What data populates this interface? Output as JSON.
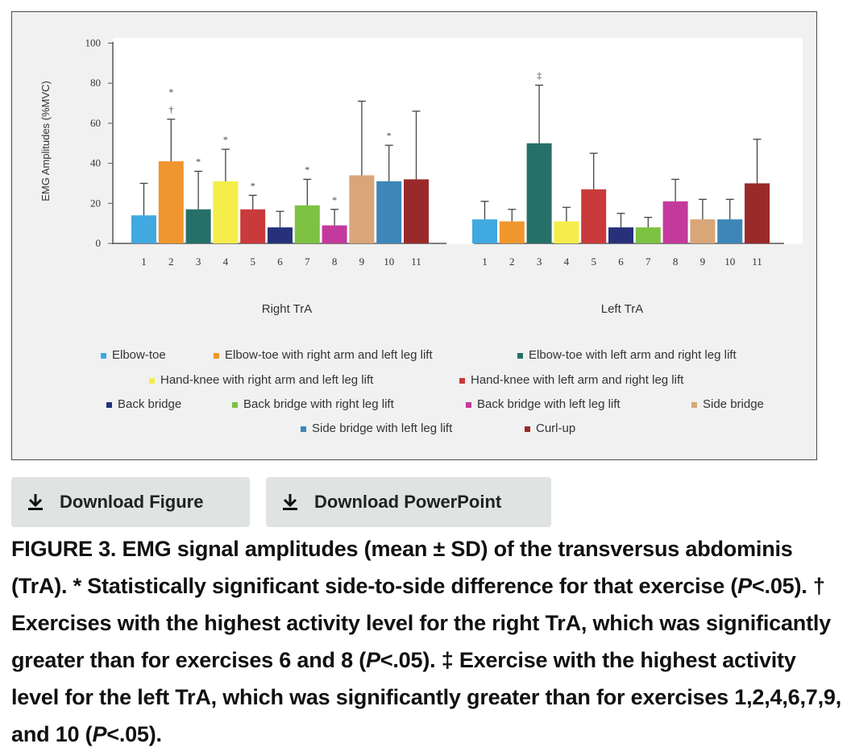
{
  "chart_data": {
    "type": "bar",
    "ylabel": "EMG Amplitudes (%MVC)",
    "ylim": [
      0,
      100
    ],
    "yticks": [
      "0",
      "20",
      "40",
      "60",
      "80",
      "100"
    ],
    "groups": [
      {
        "name": "Right TrA",
        "categories": [
          "1",
          "2",
          "3",
          "4",
          "5",
          "6",
          "7",
          "8",
          "9",
          "10",
          "11"
        ],
        "values": [
          14,
          41,
          17,
          31,
          17,
          8,
          19,
          9,
          34,
          31,
          32
        ],
        "sd_upper": [
          30,
          62,
          36,
          47,
          24,
          16,
          32,
          17,
          71,
          49,
          66
        ],
        "marks": [
          "",
          "*\n†",
          "*",
          "*",
          "*",
          "",
          "*",
          "*",
          "",
          "*",
          ""
        ]
      },
      {
        "name": "Left TrA",
        "categories": [
          "1",
          "2",
          "3",
          "4",
          "5",
          "6",
          "7",
          "8",
          "9",
          "10",
          "11"
        ],
        "values": [
          12,
          11,
          50,
          11,
          27,
          8,
          8,
          21,
          12,
          12,
          30
        ],
        "sd_upper": [
          21,
          17,
          79,
          18,
          45,
          15,
          13,
          32,
          22,
          22,
          52
        ],
        "marks": [
          "",
          "",
          "‡",
          "",
          "",
          "",
          "",
          "",
          "",
          "",
          ""
        ]
      }
    ],
    "series": [
      {
        "name": "Elbow-toe",
        "color": "#3fa9e0"
      },
      {
        "name": "Elbow-toe with right arm and left leg lift",
        "color": "#f0962e"
      },
      {
        "name": "Elbow-toe with left arm and right leg lift",
        "color": "#267069"
      },
      {
        "name": "Hand-knee with right arm and left leg lift",
        "color": "#f5ed4a"
      },
      {
        "name": "Hand-knee with left arm and right leg lift",
        "color": "#c93a3a"
      },
      {
        "name": "Back bridge",
        "color": "#26317a"
      },
      {
        "name": "Back bridge with right leg lift",
        "color": "#7dc242"
      },
      {
        "name": "Back bridge with left leg lift",
        "color": "#c4399c"
      },
      {
        "name": "Side bridge",
        "color": "#d9a678"
      },
      {
        "name": "Side bridge with left leg lift",
        "color": "#3d86b8"
      },
      {
        "name": "Curl-up",
        "color": "#9a2a2a"
      }
    ],
    "legend_placement": "bottom",
    "grid": false
  },
  "buttons": {
    "download_figure": "Download Figure",
    "download_powerpoint": "Download PowerPoint"
  },
  "icons": {
    "download": "download-icon"
  },
  "caption": {
    "p1": "FIGURE 3. EMG signal amplitudes (mean ± SD) of the transversus abdominis (TrA). * Statistically significant side-to-side difference for that exercise (",
    "p_italic_1": "P",
    "p2": "<.05).  † Exercises with the highest activity level for the right TrA, which was significantly greater than for exercises 6 and 8 (",
    "p_italic_2": "P",
    "p3": "<.05).  ‡ Exercise with the highest activity level for the left TrA, which was significantly greater than for exercises 1,2,4,6,7,9, and 10 (",
    "p_italic_3": "P",
    "p4": "<.05)."
  }
}
